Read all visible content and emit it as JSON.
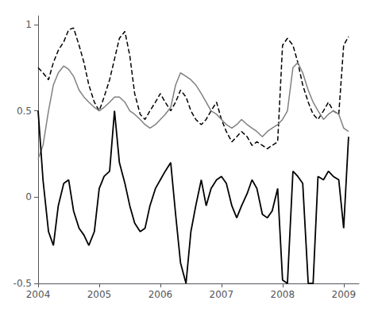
{
  "chart_data": {
    "type": "line",
    "x": [
      2004.0,
      2004.08,
      2004.17,
      2004.25,
      2004.33,
      2004.42,
      2004.5,
      2004.58,
      2004.67,
      2004.75,
      2004.83,
      2004.92,
      2005.0,
      2005.08,
      2005.17,
      2005.25,
      2005.33,
      2005.42,
      2005.5,
      2005.58,
      2005.67,
      2005.75,
      2005.83,
      2005.92,
      2006.0,
      2006.08,
      2006.17,
      2006.25,
      2006.33,
      2006.42,
      2006.5,
      2006.58,
      2006.67,
      2006.75,
      2006.83,
      2006.92,
      2007.0,
      2007.08,
      2007.17,
      2007.25,
      2007.33,
      2007.42,
      2007.5,
      2007.58,
      2007.67,
      2007.75,
      2007.83,
      2007.92,
      2008.0,
      2008.08,
      2008.17,
      2008.25,
      2008.33,
      2008.42,
      2008.5,
      2008.58,
      2008.67,
      2008.75,
      2008.83,
      2008.92,
      2009.0,
      2009.08
    ],
    "series": [
      {
        "color": "#000000",
        "line_style": "dashed",
        "values": [
          0.75,
          0.72,
          0.68,
          0.78,
          0.85,
          0.9,
          0.97,
          0.98,
          0.88,
          0.78,
          0.65,
          0.55,
          0.5,
          0.58,
          0.68,
          0.8,
          0.92,
          0.96,
          0.82,
          0.6,
          0.48,
          0.45,
          0.5,
          0.55,
          0.6,
          0.55,
          0.5,
          0.55,
          0.62,
          0.58,
          0.5,
          0.45,
          0.42,
          0.45,
          0.5,
          0.55,
          0.45,
          0.38,
          0.32,
          0.35,
          0.38,
          0.35,
          0.3,
          0.32,
          0.3,
          0.28,
          0.3,
          0.32,
          0.88,
          0.92,
          0.88,
          0.78,
          0.65,
          0.55,
          0.48,
          0.45,
          0.5,
          0.55,
          0.5,
          0.48,
          0.88,
          0.93
        ]
      },
      {
        "color": "#808080",
        "line_style": "solid",
        "values": [
          0.22,
          0.3,
          0.5,
          0.65,
          0.72,
          0.76,
          0.74,
          0.7,
          0.62,
          0.58,
          0.55,
          0.52,
          0.5,
          0.52,
          0.55,
          0.58,
          0.58,
          0.55,
          0.5,
          0.48,
          0.45,
          0.42,
          0.4,
          0.42,
          0.45,
          0.48,
          0.52,
          0.65,
          0.72,
          0.7,
          0.68,
          0.65,
          0.6,
          0.55,
          0.5,
          0.48,
          0.45,
          0.42,
          0.4,
          0.42,
          0.45,
          0.42,
          0.4,
          0.38,
          0.35,
          0.38,
          0.4,
          0.42,
          0.45,
          0.5,
          0.75,
          0.78,
          0.72,
          0.62,
          0.55,
          0.5,
          0.45,
          0.48,
          0.5,
          0.48,
          0.4,
          0.38
        ]
      },
      {
        "color": "#000000",
        "line_style": "solid",
        "values": [
          0.5,
          0.1,
          -0.2,
          -0.28,
          -0.05,
          0.08,
          0.1,
          -0.08,
          -0.18,
          -0.22,
          -0.28,
          -0.2,
          0.05,
          0.12,
          0.15,
          0.5,
          0.2,
          0.08,
          -0.05,
          -0.15,
          -0.2,
          -0.18,
          -0.05,
          0.05,
          0.1,
          0.15,
          0.2,
          -0.1,
          -0.38,
          -0.5,
          -0.2,
          -0.05,
          0.1,
          -0.05,
          0.05,
          0.1,
          0.12,
          0.08,
          -0.05,
          -0.12,
          -0.05,
          0.02,
          0.1,
          0.05,
          -0.1,
          -0.12,
          -0.08,
          0.05,
          -0.48,
          -0.5,
          0.15,
          0.12,
          0.08,
          -0.5,
          -0.5,
          0.12,
          0.1,
          0.15,
          0.12,
          0.1,
          -0.18,
          0.35
        ]
      }
    ],
    "xlim": [
      2004.0,
      2009.25
    ],
    "xticks": [
      2004,
      2005,
      2006,
      2007,
      2008,
      2009
    ],
    "ylim": [
      -0.5,
      1.05
    ],
    "yticks": [
      -0.5,
      0,
      0.5,
      1
    ],
    "grid": false
  }
}
